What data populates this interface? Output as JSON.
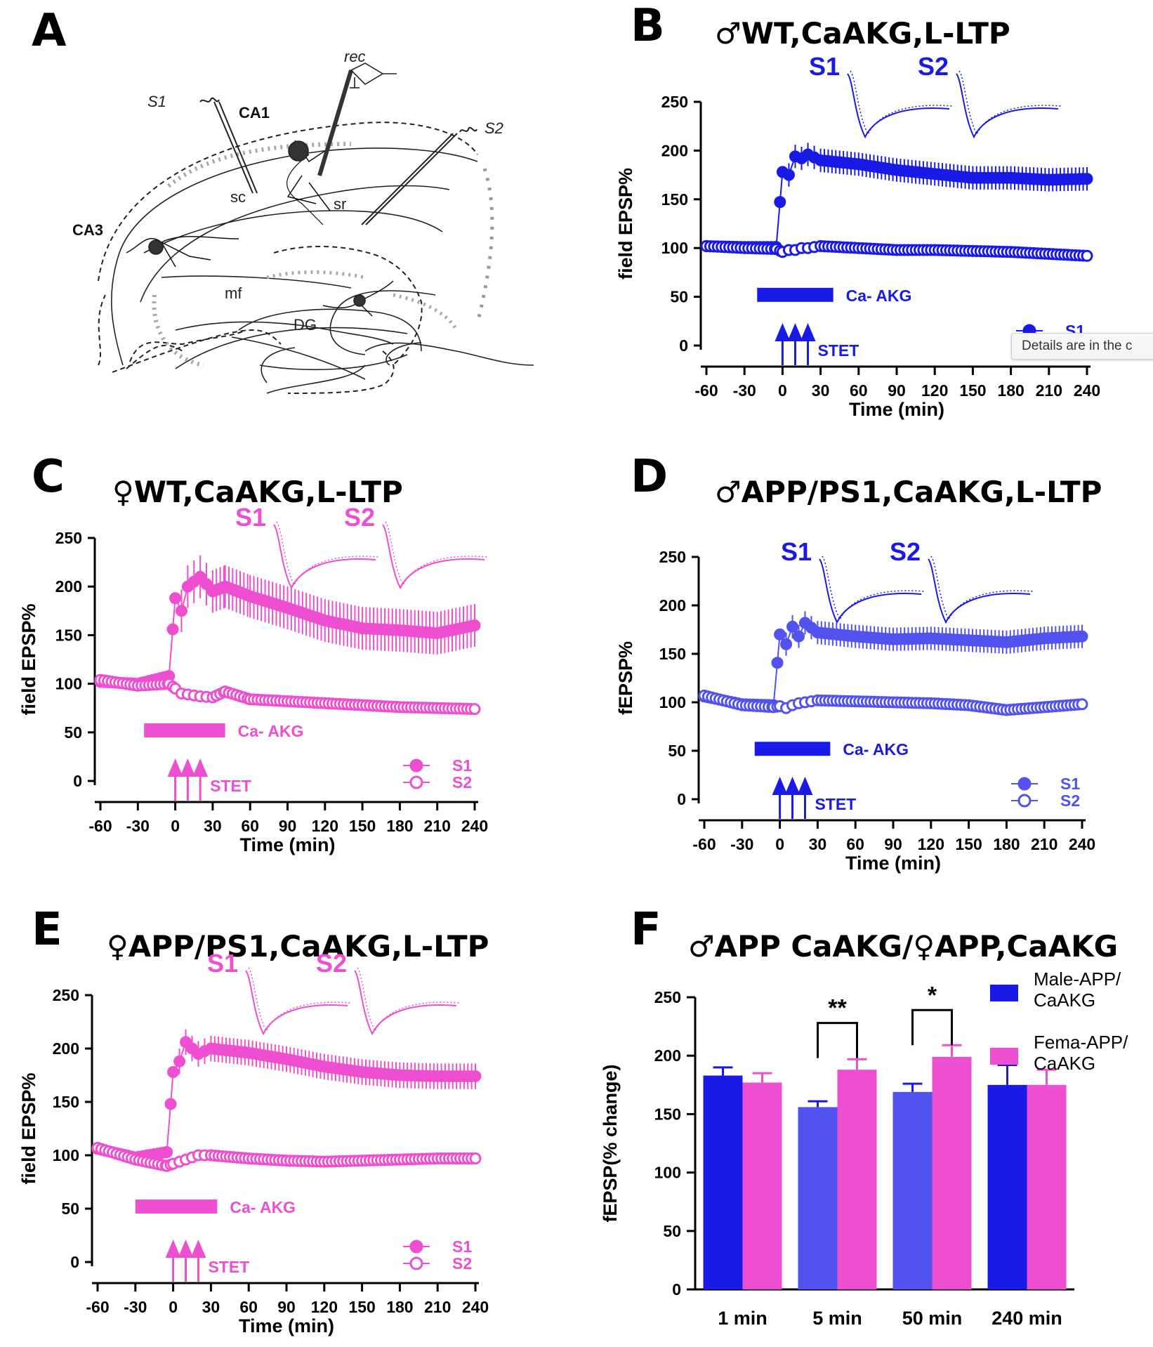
{
  "panel_letters": [
    "A",
    "B",
    "C",
    "D",
    "E",
    "F"
  ],
  "schematic": {
    "labels": [
      "S1",
      "CA1",
      "rec",
      "S2",
      "sc",
      "sr",
      "CA3",
      "mf",
      "DG"
    ]
  },
  "tooltip": "Details are in the c",
  "common": {
    "x_ticks": [
      "-60",
      "-30",
      "0",
      "30",
      "60",
      "90",
      "120",
      "150",
      "180",
      "210",
      "240"
    ],
    "xlabel": "Time (min)",
    "ylabel": "field EPSP%",
    "y_ticks": [
      "0",
      "50",
      "100",
      "150",
      "200",
      "250"
    ],
    "drug_label": "Ca- AKG",
    "stim_label": "STET",
    "trace_labels": [
      "S1",
      "S2"
    ]
  },
  "colors": {
    "male_blue": "#1a1ae6",
    "male_app_blue": "#5252ee",
    "female_pink": "#ee4fd0"
  },
  "chart_data": [
    {
      "panel": "B",
      "type": "scatter",
      "title": "♂WT,CaAKG,L-LTP",
      "xlabel": "Time (min)",
      "ylabel": "field EPSP%",
      "xlim": [
        -60,
        240
      ],
      "ylim": [
        0,
        250
      ],
      "legend": [
        "S1",
        "S2"
      ],
      "legend_position": "bottom-right",
      "annotations": {
        "drug": "Ca- AKG",
        "drug_window": [
          -20,
          40
        ],
        "stimulus": "STET",
        "stimulus_times": [
          0,
          10,
          20
        ]
      },
      "series": [
        {
          "name": "S1",
          "marker": "filled-circle",
          "x": [
            -60,
            -30,
            -5,
            0,
            5,
            10,
            15,
            20,
            30,
            60,
            90,
            120,
            150,
            180,
            210,
            240
          ],
          "y": [
            102,
            101,
            101,
            178,
            175,
            194,
            192,
            196,
            190,
            186,
            180,
            176,
            172,
            172,
            170,
            171
          ]
        },
        {
          "name": "S2",
          "marker": "open-circle",
          "x": [
            -60,
            -30,
            -5,
            0,
            5,
            10,
            15,
            20,
            30,
            60,
            90,
            120,
            150,
            180,
            210,
            240
          ],
          "y": [
            102,
            100,
            99,
            96,
            98,
            98,
            100,
            100,
            102,
            100,
            98,
            98,
            97,
            96,
            94,
            92
          ]
        }
      ]
    },
    {
      "panel": "C",
      "type": "scatter",
      "title": "♀WT,CaAKG,L-LTP",
      "xlabel": "Time (min)",
      "ylabel": "field EPSP%",
      "xlim": [
        -60,
        240
      ],
      "ylim": [
        0,
        250
      ],
      "legend": [
        "S1",
        "S2"
      ],
      "legend_position": "bottom-right",
      "annotations": {
        "drug": "Ca- AKG",
        "drug_window": [
          -25,
          40
        ],
        "stimulus": "STET",
        "stimulus_times": [
          0,
          10,
          20
        ]
      },
      "series": [
        {
          "name": "S1",
          "marker": "filled-circle",
          "x": [
            -60,
            -30,
            -5,
            0,
            5,
            10,
            15,
            20,
            30,
            40,
            60,
            90,
            120,
            150,
            180,
            210,
            240
          ],
          "y": [
            102,
            100,
            108,
            188,
            175,
            200,
            205,
            210,
            195,
            200,
            190,
            178,
            165,
            157,
            155,
            152,
            160
          ]
        },
        {
          "name": "S2",
          "marker": "open-circle",
          "x": [
            -60,
            -30,
            -5,
            0,
            5,
            10,
            15,
            20,
            30,
            40,
            60,
            90,
            120,
            150,
            180,
            210,
            240
          ],
          "y": [
            104,
            98,
            100,
            95,
            90,
            89,
            88,
            87,
            86,
            92,
            84,
            82,
            80,
            78,
            76,
            75,
            74
          ]
        }
      ]
    },
    {
      "panel": "D",
      "type": "scatter",
      "title": "♂APP/PS1,CaAKG,L-LTP",
      "xlabel": "Time (min)",
      "ylabel": "fEPSP%",
      "xlim": [
        -60,
        240
      ],
      "ylim": [
        0,
        250
      ],
      "legend": [
        "S1",
        "S2"
      ],
      "legend_position": "bottom-right",
      "annotations": {
        "drug": "Ca- AKG",
        "drug_window": [
          -20,
          40
        ],
        "stimulus": "STET",
        "stimulus_times": [
          0,
          10,
          20
        ]
      },
      "series": [
        {
          "name": "S1",
          "marker": "filled-circle",
          "x": [
            -60,
            -30,
            -5,
            0,
            5,
            10,
            15,
            20,
            30,
            60,
            90,
            120,
            150,
            180,
            210,
            240
          ],
          "y": [
            106,
            98,
            97,
            170,
            160,
            178,
            168,
            182,
            172,
            168,
            165,
            166,
            164,
            162,
            166,
            168
          ]
        },
        {
          "name": "S2",
          "marker": "open-circle",
          "x": [
            -60,
            -30,
            -5,
            0,
            5,
            10,
            15,
            20,
            30,
            60,
            90,
            120,
            150,
            180,
            210,
            240
          ],
          "y": [
            107,
            97,
            95,
            96,
            94,
            97,
            99,
            100,
            102,
            101,
            100,
            99,
            97,
            92,
            95,
            98
          ]
        }
      ]
    },
    {
      "panel": "E",
      "type": "scatter",
      "title": "♀APP/PS1,CaAKG,L-LTP",
      "xlabel": "Time (min)",
      "ylabel": "field EPSP%",
      "xlim": [
        -60,
        240
      ],
      "ylim": [
        0,
        250
      ],
      "legend": [
        "S1",
        "S2"
      ],
      "legend_position": "bottom-right",
      "annotations": {
        "drug": "Ca- AKG",
        "drug_window": [
          -30,
          35
        ],
        "stimulus": "STET",
        "stimulus_times": [
          0,
          10,
          20
        ]
      },
      "series": [
        {
          "name": "S1",
          "marker": "filled-circle",
          "x": [
            -60,
            -30,
            -5,
            0,
            5,
            10,
            15,
            20,
            30,
            60,
            90,
            120,
            150,
            180,
            210,
            240
          ],
          "y": [
            106,
            98,
            103,
            178,
            188,
            206,
            200,
            195,
            200,
            196,
            190,
            183,
            178,
            175,
            174,
            174
          ]
        },
        {
          "name": "S2",
          "marker": "open-circle",
          "x": [
            -60,
            -30,
            -5,
            0,
            5,
            10,
            15,
            20,
            30,
            60,
            90,
            120,
            150,
            180,
            210,
            240
          ],
          "y": [
            107,
            96,
            90,
            92,
            94,
            96,
            98,
            100,
            100,
            97,
            95,
            94,
            95,
            96,
            97,
            97
          ]
        }
      ]
    },
    {
      "panel": "F",
      "type": "bar",
      "title": "♂APP CaAKG/♀APP,CaAKG",
      "ylabel": "fEPSP(% change)",
      "categories": [
        "1 min",
        "5 min",
        "50 min",
        "240 min"
      ],
      "ylim": [
        0,
        250
      ],
      "y_ticks": [
        "0",
        "50",
        "100",
        "150",
        "200",
        "250"
      ],
      "legend_position": "top-right",
      "series": [
        {
          "name": "Male-APP/ CaAKG",
          "values": [
            183,
            156,
            169,
            175
          ],
          "errors": [
            7,
            5,
            7,
            17
          ]
        },
        {
          "name": "Fema-APP/ CaAKG",
          "values": [
            177,
            188,
            199,
            175
          ],
          "errors": [
            8,
            9,
            10,
            13
          ]
        }
      ],
      "significance": [
        {
          "category": "5 min",
          "label": "**"
        },
        {
          "category": "50 min",
          "label": "*"
        }
      ]
    }
  ]
}
